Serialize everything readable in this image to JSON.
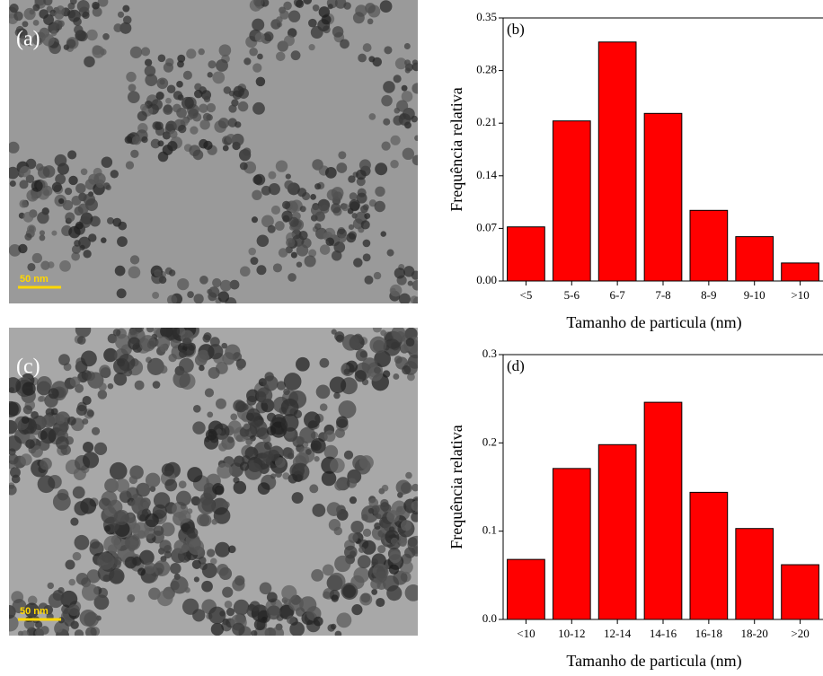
{
  "images": [
    {
      "label": "(a)",
      "scale_bar": "50 nm"
    },
    {
      "label": "(c)",
      "scale_bar": "50 nm"
    }
  ],
  "chart_data": [
    {
      "type": "bar",
      "label": "(b)",
      "x_label": "Tamanho de particula (nm)",
      "y_label": "Frequência relativa",
      "categories": [
        "<5",
        "5-6",
        "6-7",
        "7-8",
        "8-9",
        "9-10",
        ">10"
      ],
      "values": [
        0.072,
        0.213,
        0.318,
        0.223,
        0.094,
        0.059,
        0.024
      ],
      "color": "#ff0000",
      "ylim": [
        0,
        0.35
      ],
      "yticks": [
        {
          "value": 0,
          "label": "0.00"
        },
        0.07,
        0.14,
        0.21,
        0.28,
        0.35
      ]
    },
    {
      "type": "bar",
      "label": "(d)",
      "x_label": "Tamanho de particula (nm)",
      "y_label": "Frequência relativa",
      "categories": [
        "<10",
        "10-12",
        "12-14",
        "14-16",
        "16-18",
        "18-20",
        ">20"
      ],
      "values": [
        0.068,
        0.171,
        0.198,
        0.246,
        0.144,
        0.103,
        0.062
      ],
      "color": "#ff0000",
      "ylim": [
        0,
        0.3
      ],
      "yticks": [
        {
          "value": 0,
          "label": "0.0"
        },
        0.1,
        0.2,
        0.3
      ]
    }
  ]
}
